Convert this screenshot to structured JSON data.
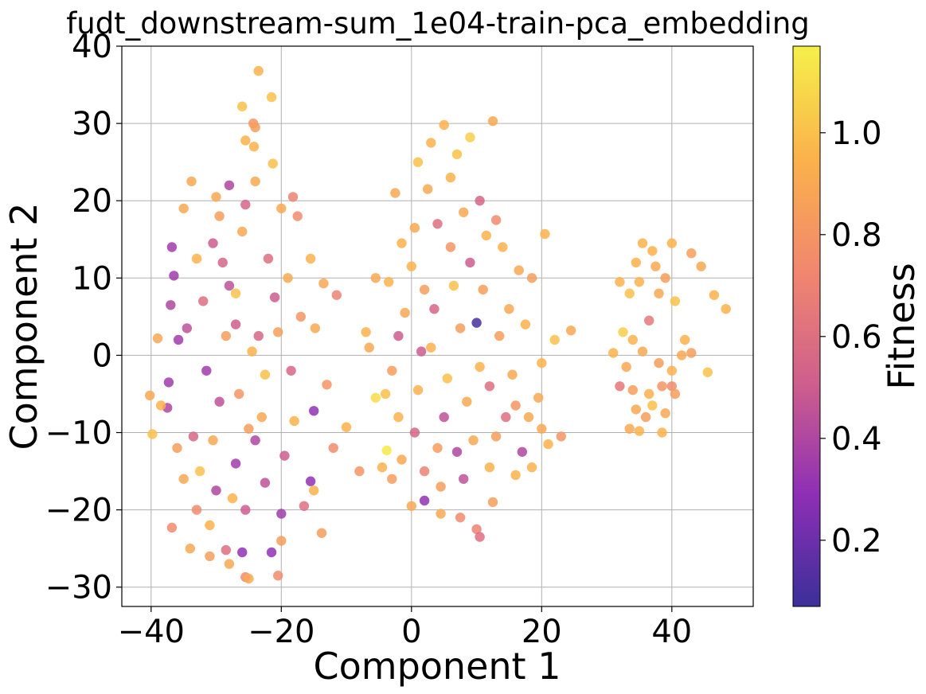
{
  "chart_data": {
    "type": "scatter",
    "title": "fudt_downstream-sum_1e04-train-pca_embedding",
    "xlabel": "Component 1",
    "ylabel": "Component 2",
    "xlim": [
      -44.5,
      52.5
    ],
    "ylim": [
      -32.5,
      40
    ],
    "xticks": [
      -40,
      -20,
      0,
      20,
      40
    ],
    "yticks": [
      -30,
      -20,
      -10,
      0,
      10,
      20,
      30,
      40
    ],
    "xtick_labels": [
      "−40",
      "−20",
      "0",
      "20",
      "40"
    ],
    "ytick_labels": [
      "−30",
      "−20",
      "−10",
      "0",
      "10",
      "20",
      "30",
      "40"
    ],
    "grid": true,
    "colorbar": {
      "label": "Fitness",
      "range": [
        0.07,
        1.17
      ],
      "ticks": [
        0.2,
        0.4,
        0.6,
        0.8,
        1.0
      ],
      "tick_labels": [
        "0.2",
        "0.4",
        "0.6",
        "0.8",
        "1.0"
      ],
      "colormap": "plasma",
      "colormap_stops": [
        "#3b2f9a",
        "#8e2fb6",
        "#cf5f8c",
        "#f1876f",
        "#fbb24b",
        "#f5f04a"
      ]
    },
    "points": [
      [
        -23.5,
        36.8,
        0.95
      ],
      [
        -21.5,
        33.4,
        1.0
      ],
      [
        -26.0,
        32.2,
        1.0
      ],
      [
        -24.3,
        30.0,
        0.8
      ],
      [
        -24.0,
        29.5,
        0.85
      ],
      [
        -25.5,
        27.8,
        0.95
      ],
      [
        -24.2,
        27.0,
        0.95
      ],
      [
        -21.3,
        24.8,
        1.0
      ],
      [
        -28.0,
        22.0,
        0.4
      ],
      [
        -30.0,
        20.5,
        0.9
      ],
      [
        -33.8,
        22.5,
        0.9
      ],
      [
        -25.5,
        19.5,
        0.55
      ],
      [
        -20.0,
        19.0,
        0.9
      ],
      [
        -18.2,
        20.5,
        0.7
      ],
      [
        -17.5,
        18.0,
        0.75
      ],
      [
        -35.0,
        19.0,
        0.9
      ],
      [
        -36.8,
        14.0,
        0.35
      ],
      [
        -36.5,
        10.3,
        0.35
      ],
      [
        -37.0,
        6.5,
        0.4
      ],
      [
        -35.8,
        2.0,
        0.35
      ],
      [
        -37.3,
        -3.5,
        0.35
      ],
      [
        -37.5,
        -6.8,
        0.4
      ],
      [
        -38.5,
        -6.5,
        0.95
      ],
      [
        -39.8,
        -10.2,
        1.0
      ],
      [
        -40.2,
        -5.2,
        0.9
      ],
      [
        -39.0,
        2.2,
        0.9
      ],
      [
        -36.8,
        -22.3,
        0.75
      ],
      [
        -34.0,
        -25.0,
        0.9
      ],
      [
        -31.0,
        -26.0,
        0.85
      ],
      [
        -28.0,
        -27.0,
        0.9
      ],
      [
        -25.5,
        -28.7,
        0.75
      ],
      [
        -25.0,
        -28.9,
        0.9
      ],
      [
        -20.5,
        -28.5,
        0.75
      ],
      [
        -21.5,
        -25.5,
        0.3
      ],
      [
        -26.0,
        -25.5,
        0.3
      ],
      [
        -28.5,
        -25.2,
        0.6
      ],
      [
        -16.5,
        -19.5,
        0.6
      ],
      [
        -13.8,
        -23.0,
        0.85
      ],
      [
        -15.5,
        -16.3,
        0.3
      ],
      [
        -15.0,
        -7.2,
        0.3
      ],
      [
        -12.0,
        -12.0,
        0.75
      ],
      [
        -11.5,
        7.8,
        0.7
      ],
      [
        -13.5,
        9.3,
        0.9
      ],
      [
        -14.8,
        3.5,
        0.9
      ],
      [
        -10.0,
        -9.3,
        0.95
      ],
      [
        -8.0,
        -15.0,
        0.8
      ],
      [
        -13.0,
        -3.8,
        0.8
      ],
      [
        -15.5,
        12.5,
        0.95
      ],
      [
        -30.5,
        14.5,
        0.5
      ],
      [
        -28.0,
        9.0,
        0.45
      ],
      [
        -32.0,
        7.0,
        0.6
      ],
      [
        -27.0,
        4.0,
        0.5
      ],
      [
        -31.5,
        -2.0,
        0.35
      ],
      [
        -29.5,
        -6.0,
        0.45
      ],
      [
        -24.0,
        -11.0,
        0.4
      ],
      [
        -27.0,
        -14.0,
        0.35
      ],
      [
        -30.0,
        -17.5,
        0.4
      ],
      [
        -22.5,
        -16.5,
        0.45
      ],
      [
        -19.5,
        -13.0,
        0.5
      ],
      [
        -23.5,
        2.5,
        0.55
      ],
      [
        -21.0,
        7.5,
        0.5
      ],
      [
        -18.5,
        -2.0,
        0.55
      ],
      [
        -33.5,
        -10.5,
        0.55
      ],
      [
        -25.5,
        -20.0,
        0.5
      ],
      [
        -20.0,
        -20.5,
        0.35
      ],
      [
        -29.0,
        12.0,
        0.55
      ],
      [
        -34.5,
        3.5,
        0.45
      ],
      [
        -22.0,
        12.5,
        0.6
      ],
      [
        -26.5,
        -5.0,
        0.8
      ],
      [
        -24.5,
        0.5,
        0.95
      ],
      [
        -28.5,
        2.5,
        0.85
      ],
      [
        -30.5,
        -11.0,
        0.9
      ],
      [
        -32.5,
        -15.0,
        1.0
      ],
      [
        -27.5,
        -18.5,
        0.95
      ],
      [
        -23.0,
        -8.0,
        0.9
      ],
      [
        -20.5,
        3.0,
        0.85
      ],
      [
        -35.0,
        -16.0,
        0.9
      ],
      [
        -33.0,
        12.5,
        0.95
      ],
      [
        -26.0,
        16.0,
        0.9
      ],
      [
        -22.5,
        -2.5,
        1.0
      ],
      [
        -18.0,
        -8.5,
        0.95
      ],
      [
        -17.0,
        5.0,
        0.8
      ],
      [
        -31.0,
        -22.0,
        0.95
      ],
      [
        -29.5,
        18.0,
        0.85
      ],
      [
        -24.0,
        22.5,
        0.9
      ],
      [
        -36.0,
        -12.0,
        0.85
      ],
      [
        -15.0,
        -17.5,
        0.95
      ],
      [
        -33.0,
        -20.0,
        0.75
      ],
      [
        -20.0,
        -24.0,
        0.85
      ],
      [
        -27.0,
        8.0,
        1.0
      ],
      [
        -25.0,
        -9.5,
        0.85
      ],
      [
        -19.0,
        10.0,
        0.9
      ],
      [
        1.0,
        25.0,
        1.0
      ],
      [
        5.0,
        29.8,
        0.95
      ],
      [
        9.0,
        28.2,
        1.05
      ],
      [
        12.5,
        30.3,
        0.9
      ],
      [
        3.0,
        27.5,
        0.95
      ],
      [
        7.0,
        26.0,
        1.0
      ],
      [
        -2.5,
        21.0,
        0.9
      ],
      [
        -1.5,
        14.5,
        0.95
      ],
      [
        -5.5,
        10.0,
        0.9
      ],
      [
        -3.5,
        9.5,
        0.95
      ],
      [
        -7.0,
        3.0,
        0.95
      ],
      [
        -6.5,
        1.0,
        0.9
      ],
      [
        -4.0,
        -5.0,
        1.0
      ],
      [
        -5.5,
        -5.5,
        1.1
      ],
      [
        -3.8,
        -12.3,
        1.15
      ],
      [
        -4.5,
        -14.5,
        0.95
      ],
      [
        -3.0,
        -16.0,
        0.85
      ],
      [
        0.0,
        -19.5,
        0.9
      ],
      [
        2.0,
        -18.8,
        0.3
      ],
      [
        4.5,
        -20.5,
        0.9
      ],
      [
        7.5,
        -21.0,
        0.75
      ],
      [
        10.0,
        -22.5,
        0.7
      ],
      [
        10.5,
        -23.5,
        0.6
      ],
      [
        12.5,
        -19.0,
        0.85
      ],
      [
        16.0,
        -15.5,
        0.95
      ],
      [
        18.5,
        -14.5,
        0.95
      ],
      [
        17.0,
        -12.5,
        0.4
      ],
      [
        20.0,
        -9.5,
        0.9
      ],
      [
        21.0,
        -11.5,
        0.95
      ],
      [
        23.0,
        -10.5,
        0.8
      ],
      [
        19.5,
        -5.5,
        0.9
      ],
      [
        20.0,
        -1.0,
        0.95
      ],
      [
        22.0,
        2.0,
        1.0
      ],
      [
        24.5,
        3.2,
        0.9
      ],
      [
        20.5,
        15.7,
        0.95
      ],
      [
        18.5,
        10.0,
        0.85
      ],
      [
        16.5,
        11.0,
        0.9
      ],
      [
        14.0,
        14.0,
        0.95
      ],
      [
        13.0,
        17.5,
        0.75
      ],
      [
        10.0,
        4.2,
        0.1
      ],
      [
        7.0,
        -12.5,
        0.4
      ],
      [
        5.0,
        -8.0,
        0.45
      ],
      [
        1.5,
        0.5,
        0.5
      ],
      [
        3.5,
        6.0,
        0.55
      ],
      [
        9.0,
        12.0,
        0.5
      ],
      [
        12.0,
        -4.0,
        0.6
      ],
      [
        -2.0,
        2.5,
        0.5
      ],
      [
        0.5,
        -10.0,
        0.55
      ],
      [
        8.0,
        -16.0,
        0.45
      ],
      [
        14.5,
        -8.0,
        0.6
      ],
      [
        4.0,
        17.0,
        0.6
      ],
      [
        10.5,
        20.0,
        0.55
      ],
      [
        2.0,
        -15.0,
        0.7
      ],
      [
        6.0,
        14.0,
        0.8
      ],
      [
        11.0,
        8.5,
        0.85
      ],
      [
        -1.0,
        5.5,
        0.9
      ],
      [
        3.0,
        1.0,
        0.95
      ],
      [
        5.5,
        -3.0,
        1.0
      ],
      [
        8.5,
        -6.0,
        0.9
      ],
      [
        1.0,
        -4.5,
        0.95
      ],
      [
        13.5,
        2.5,
        0.85
      ],
      [
        15.5,
        -2.5,
        0.9
      ],
      [
        0.0,
        11.5,
        0.95
      ],
      [
        7.5,
        3.5,
        0.85
      ],
      [
        9.5,
        -11.0,
        0.9
      ],
      [
        12.0,
        -14.5,
        0.95
      ],
      [
        4.0,
        -12.0,
        0.85
      ],
      [
        -2.0,
        -8.0,
        0.95
      ],
      [
        6.5,
        9.0,
        1.0
      ],
      [
        2.5,
        21.5,
        0.9
      ],
      [
        11.5,
        15.5,
        0.95
      ],
      [
        15.0,
        6.0,
        0.9
      ],
      [
        -3.0,
        -2.0,
        0.85
      ],
      [
        16.0,
        -6.5,
        0.8
      ],
      [
        8.0,
        18.5,
        0.9
      ],
      [
        2.0,
        8.5,
        0.85
      ],
      [
        10.5,
        -1.5,
        0.95
      ],
      [
        4.5,
        -17.0,
        0.85
      ],
      [
        -1.5,
        -13.5,
        0.9
      ],
      [
        13.0,
        -10.5,
        0.85
      ],
      [
        6.0,
        23.0,
        0.95
      ],
      [
        0.5,
        16.5,
        0.9
      ],
      [
        17.5,
        4.0,
        0.95
      ],
      [
        18.0,
        -8.0,
        0.9
      ],
      [
        35.5,
        14.5,
        0.95
      ],
      [
        40.0,
        14.5,
        0.95
      ],
      [
        37.0,
        13.5,
        0.95
      ],
      [
        43.0,
        13.2,
        0.85
      ],
      [
        44.5,
        11.5,
        0.9
      ],
      [
        46.5,
        7.8,
        0.95
      ],
      [
        48.3,
        6.0,
        0.95
      ],
      [
        32.0,
        9.5,
        0.95
      ],
      [
        33.5,
        8.0,
        1.0
      ],
      [
        35.0,
        9.5,
        0.95
      ],
      [
        38.0,
        8.0,
        0.9
      ],
      [
        40.5,
        7.0,
        1.0
      ],
      [
        36.5,
        4.5,
        0.65
      ],
      [
        32.5,
        3.0,
        1.05
      ],
      [
        34.0,
        2.0,
        0.95
      ],
      [
        35.5,
        0.5,
        0.9
      ],
      [
        31.0,
        0.3,
        0.95
      ],
      [
        33.0,
        -1.5,
        0.9
      ],
      [
        38.0,
        -1.0,
        0.85
      ],
      [
        41.5,
        0.0,
        0.9
      ],
      [
        43.0,
        0.3,
        0.85
      ],
      [
        45.5,
        -2.2,
        1.0
      ],
      [
        40.0,
        -2.0,
        0.95
      ],
      [
        32.0,
        -4.0,
        0.65
      ],
      [
        34.0,
        -4.5,
        0.85
      ],
      [
        36.5,
        -5.0,
        0.95
      ],
      [
        38.5,
        -4.0,
        0.8
      ],
      [
        40.0,
        -4.0,
        0.75
      ],
      [
        40.5,
        -5.0,
        0.85
      ],
      [
        34.5,
        -7.0,
        0.9
      ],
      [
        37.0,
        -6.5,
        1.0
      ],
      [
        39.0,
        -7.5,
        0.9
      ],
      [
        33.5,
        -9.5,
        0.9
      ],
      [
        36.0,
        -8.0,
        0.85
      ],
      [
        38.5,
        -10.0,
        0.95
      ],
      [
        35.0,
        -9.8,
        0.95
      ],
      [
        42.0,
        2.0,
        0.95
      ],
      [
        37.5,
        11.5,
        0.9
      ],
      [
        34.5,
        12.0,
        0.95
      ],
      [
        39.0,
        10.0,
        0.85
      ]
    ]
  }
}
